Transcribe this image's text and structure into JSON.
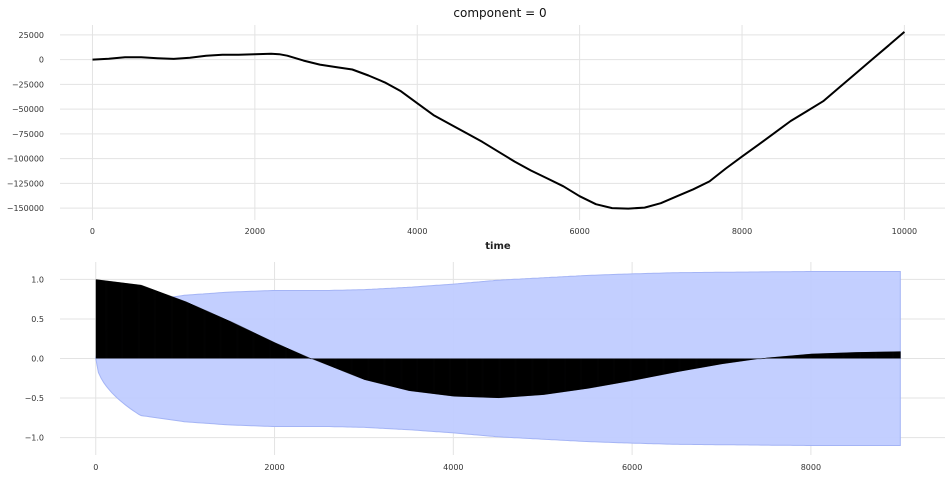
{
  "chart_data": [
    {
      "type": "line",
      "title": "component = 0",
      "xlabel": "time",
      "ylabel": "",
      "xlim": [
        -400,
        10500
      ],
      "ylim": [
        -162000,
        35000
      ],
      "grid": true,
      "line_color": "#000000",
      "x_ticks": [
        0,
        2000,
        4000,
        6000,
        8000,
        10000
      ],
      "x_tick_labels": [
        "0",
        "2000",
        "4000",
        "6000",
        "8000",
        "10000"
      ],
      "y_ticks": [
        25000,
        0,
        -25000,
        -50000,
        -75000,
        -100000,
        -125000,
        -150000
      ],
      "y_tick_labels": [
        "25000",
        "0",
        "−25000",
        "−50000",
        "−75000",
        "−100000",
        "−125000",
        "−150000"
      ],
      "x": [
        0,
        200,
        400,
        600,
        800,
        1000,
        1200,
        1400,
        1600,
        1800,
        2000,
        2200,
        2300,
        2400,
        2600,
        2800,
        3000,
        3200,
        3400,
        3600,
        3800,
        4000,
        4200,
        4400,
        4600,
        4800,
        5000,
        5200,
        5400,
        5600,
        5800,
        6000,
        6200,
        6400,
        6600,
        6800,
        7000,
        7200,
        7400,
        7600,
        7800,
        8000,
        8200,
        8400,
        8600,
        8800,
        9000,
        9200,
        9400,
        9600,
        9800,
        10000
      ],
      "y": [
        0,
        1000,
        2500,
        2500,
        1500,
        800,
        2000,
        4000,
        5000,
        5000,
        5500,
        6000,
        5500,
        4000,
        -1000,
        -5000,
        -7500,
        -10000,
        -16000,
        -23000,
        -32000,
        -44000,
        -56000,
        -65000,
        -74000,
        -83000,
        -93000,
        -103000,
        -112000,
        -120000,
        -128000,
        -138000,
        -146000,
        -150000,
        -150500,
        -149500,
        -145000,
        -138000,
        -131000,
        -123000,
        -110000,
        -98000,
        -86000,
        -74000,
        -62000,
        -52000,
        -42000,
        -28000,
        -14000,
        0,
        14000,
        28000
      ]
    },
    {
      "type": "bar",
      "title": "",
      "xlabel": "",
      "ylabel": "",
      "xlim": [
        -400,
        9500
      ],
      "ylim": [
        -1.22,
        1.22
      ],
      "grid": true,
      "bar_color": "#000000",
      "band_color": "#c0ccff",
      "band_edge_color": "#a4b4f5",
      "x_ticks": [
        0,
        2000,
        4000,
        6000,
        8000
      ],
      "x_tick_labels": [
        "0",
        "2000",
        "4000",
        "6000",
        "8000"
      ],
      "y_ticks": [
        1.0,
        0.5,
        0.0,
        -0.5,
        -1.0
      ],
      "y_tick_labels": [
        "1.0",
        "0.5",
        "0.0",
        "−0.5",
        "−1.0"
      ],
      "lag": [
        0,
        500,
        1000,
        1500,
        2000,
        2400,
        2600,
        3000,
        3500,
        4000,
        4500,
        5000,
        5500,
        6000,
        6500,
        7000,
        7500,
        8000,
        8500,
        9000
      ],
      "acf": [
        1.0,
        0.93,
        0.72,
        0.47,
        0.2,
        0.0,
        -0.09,
        -0.27,
        -0.41,
        -0.48,
        -0.5,
        -0.46,
        -0.38,
        -0.28,
        -0.17,
        -0.07,
        0.01,
        0.06,
        0.08,
        0.09
      ],
      "confidence_band": [
        0.0,
        0.72,
        0.8,
        0.84,
        0.86,
        0.86,
        0.86,
        0.87,
        0.9,
        0.94,
        0.99,
        1.02,
        1.05,
        1.07,
        1.085,
        1.09,
        1.095,
        1.1,
        1.1,
        1.1
      ]
    }
  ]
}
